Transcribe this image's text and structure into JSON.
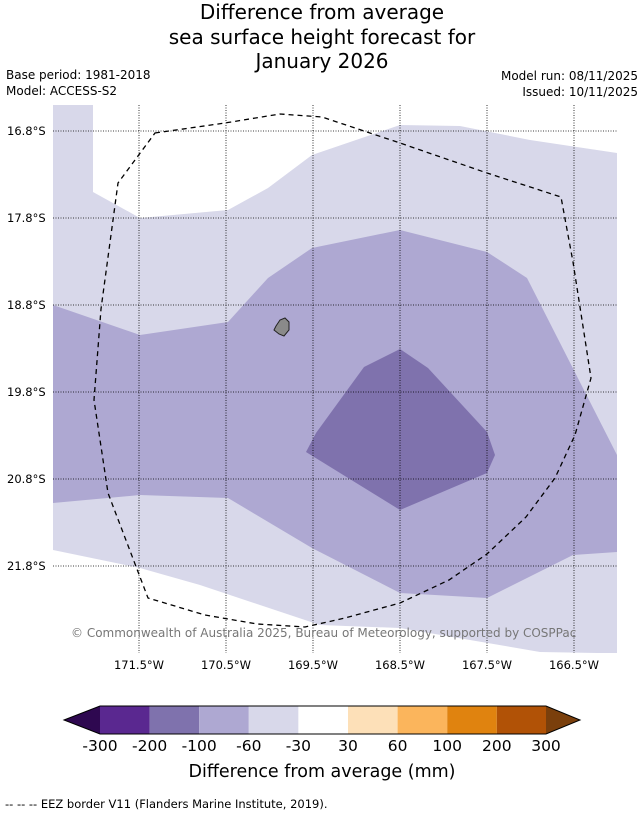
{
  "title": {
    "line1": "Difference from average",
    "line2": "sea surface height forecast for",
    "line3": "January 2026"
  },
  "meta": {
    "base_period": "Base period: 1981-2018",
    "model": "Model: ACCESS-S2",
    "model_run": "Model run: 08/11/2025",
    "issued": "Issued: 10/11/2025"
  },
  "map": {
    "lat_labels": [
      "16.8°S",
      "17.8°S",
      "18.8°S",
      "19.8°S",
      "20.8°S",
      "21.8°S"
    ],
    "lon_labels": [
      "171.5°W",
      "170.5°W",
      "169.5°W",
      "168.5°W",
      "167.5°W",
      "166.5°W"
    ],
    "copyright": "© Commonwealth of Australia 2025, Bureau of Meteorology, supported by COSPPac",
    "legend_line": "--  --  -- EEZ border V11 (Flanders Marine Institute, 2019)."
  },
  "colorbar": {
    "ticks": [
      "-300",
      "-200",
      "-100",
      "-60",
      "-30",
      "30",
      "60",
      "100",
      "200",
      "300"
    ],
    "colors": [
      "#2e0850",
      "#5a2890",
      "#7f72ad",
      "#aea8d2",
      "#d8d8ea",
      "#ffffff",
      "#fde0b8",
      "#fbb55c",
      "#e0830f",
      "#b15206",
      "#7a3f0c"
    ],
    "label": "Difference from average (mm)"
  }
}
